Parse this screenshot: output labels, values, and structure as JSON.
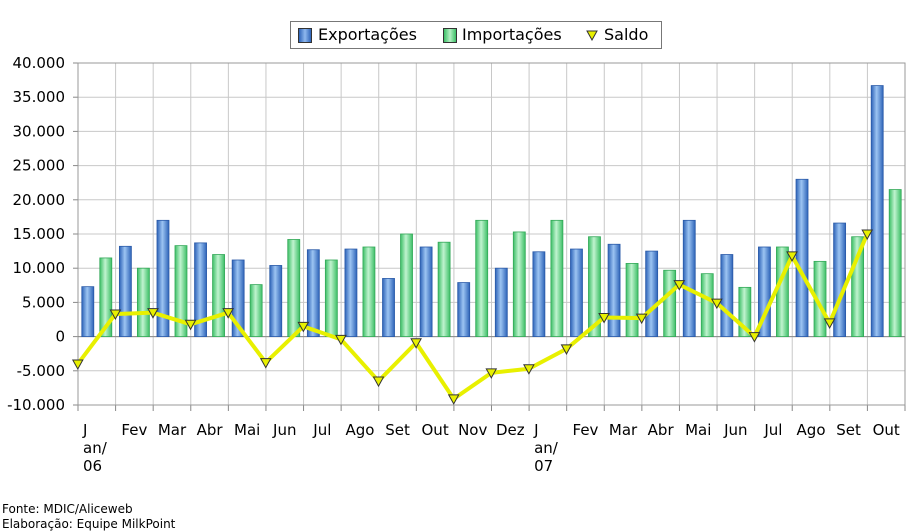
{
  "chart_data": {
    "type": "bar",
    "categories": [
      "J\nan/\n06",
      "Fev",
      "Mar",
      "Abr",
      "Mai",
      "Jun",
      "Jul",
      "Ago",
      "Set",
      "Out",
      "Nov",
      "Dez",
      "J\nan/\n07",
      "Fev",
      "Mar",
      "Abr",
      "Mai",
      "Jun",
      "Jul",
      "Ago",
      "Set",
      "Out"
    ],
    "series": [
      {
        "name": "Exportações",
        "kind": "bar",
        "color": "#4a86d4",
        "values": [
          7300,
          13200,
          17000,
          13700,
          11200,
          10400,
          12700,
          12800,
          8500,
          13100,
          7900,
          10000,
          12400,
          12800,
          13500,
          12500,
          17000,
          12000,
          13100,
          23000,
          16600,
          36700
        ]
      },
      {
        "name": "Importações",
        "kind": "bar",
        "color": "#6fd68f",
        "values": [
          11500,
          10000,
          13300,
          12000,
          7600,
          14200,
          11200,
          13100,
          15000,
          13800,
          17000,
          15300,
          17000,
          14600,
          10700,
          9700,
          9200,
          7200,
          13100,
          11000,
          14600,
          21500
        ]
      },
      {
        "name": "Saldo",
        "kind": "line",
        "color": "#e8f000",
        "values": [
          -4000,
          3300,
          3500,
          1800,
          3500,
          -3800,
          1500,
          -400,
          -6500,
          -900,
          -9100,
          -5300,
          -4700,
          -1800,
          2800,
          2700,
          7600,
          4900,
          0,
          11800,
          2000,
          15000
        ]
      }
    ],
    "ytick_labels": [
      "40.000",
      "35.000",
      "30.000",
      "25.000",
      "20.000",
      "15.000",
      "10.000",
      "5.000",
      "0",
      "-5.000",
      "-10.000"
    ],
    "ylim": [
      -10000,
      40000
    ],
    "grid": true,
    "legend": "top-center"
  },
  "footer": {
    "source": "Fonte: MDIC/Aliceweb",
    "credit": "Elaboração: Equipe MilkPoint"
  }
}
